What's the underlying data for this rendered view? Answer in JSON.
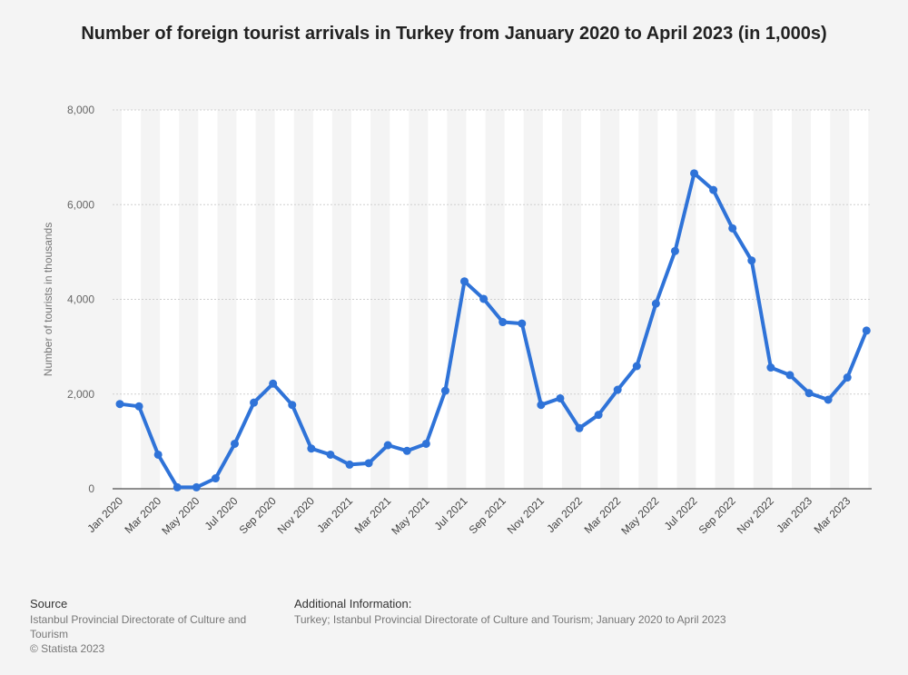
{
  "title": "Number of foreign tourist arrivals in Turkey from January 2020 to April 2023 (in 1,000s)",
  "footer": {
    "source_heading": "Source",
    "source_text": "Istanbul Provincial Directorate of Culture and Tourism",
    "copyright": "© Statista 2023",
    "info_heading": "Additional Information:",
    "info_text": "Turkey; Istanbul Provincial Directorate of Culture and Tourism; January 2020 to April 2023"
  },
  "chart_data": {
    "type": "line",
    "title": "Number of foreign tourist arrivals in Turkey from January 2020 to April 2023 (in 1,000s)",
    "xlabel": "",
    "ylabel": "Number of tourists in thousands",
    "ylim": [
      0,
      8000
    ],
    "yticks": [
      "0",
      "2,000",
      "4,000",
      "6,000",
      "8,000"
    ],
    "grid": true,
    "line_color": "#2f73d8",
    "x": [
      "Jan 2020",
      "Feb 2020",
      "Mar 2020",
      "Apr 2020",
      "May 2020",
      "Jun 2020",
      "Jul 2020",
      "Aug 2020",
      "Sep 2020",
      "Oct 2020",
      "Nov 2020",
      "Dec 2020",
      "Jan 2021",
      "Feb 2021",
      "Mar 2021",
      "Apr 2021",
      "May 2021",
      "Jun 2021",
      "Jul 2021",
      "Aug 2021",
      "Sep 2021",
      "Oct 2021",
      "Nov 2021",
      "Dec 2021",
      "Jan 2022",
      "Feb 2022",
      "Mar 2022",
      "Apr 2022",
      "May 2022",
      "Jun 2022",
      "Jul 2022",
      "Aug 2022",
      "Sep 2022",
      "Oct 2022",
      "Nov 2022",
      "Dec 2022",
      "Jan 2023",
      "Feb 2023",
      "Mar 2023",
      "Apr 2023"
    ],
    "tick_labels": [
      "Jan 2020",
      "Mar 2020",
      "May 2020",
      "Jul 2020",
      "Sep 2020",
      "Nov 2020",
      "Jan 2021",
      "Mar 2021",
      "May 2021",
      "Jul 2021",
      "Sep 2021",
      "Nov 2021",
      "Jan 2022",
      "Mar 2022",
      "May 2022",
      "Jul 2022",
      "Sep 2022",
      "Nov 2022",
      "Jan 2023",
      "Mar 2023"
    ],
    "series": [
      {
        "values": [
          1790,
          1740,
          720,
          30,
          30,
          220,
          950,
          1820,
          2220,
          1770,
          850,
          720,
          510,
          540,
          920,
          800,
          950,
          2070,
          4380,
          4010,
          3520,
          3490,
          1770,
          1910,
          1280,
          1560,
          2090,
          2590,
          3910,
          5020,
          6660,
          6310,
          5500,
          4820,
          2560,
          2400,
          2020,
          1880,
          2350,
          3340
        ]
      }
    ]
  }
}
